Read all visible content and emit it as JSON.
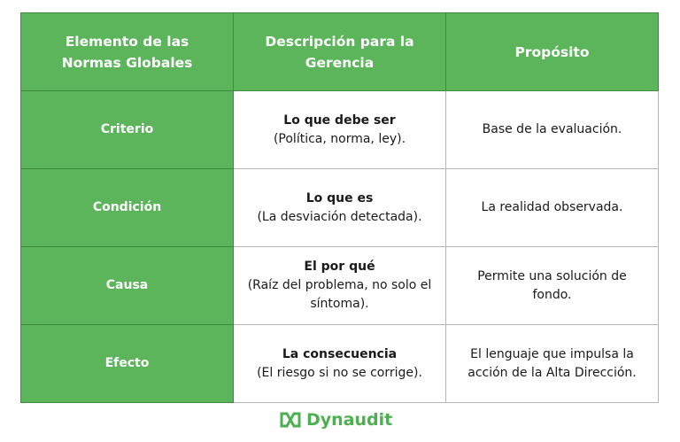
{
  "headers": [
    "Elemento de las Normas Globales",
    "Descripción para la Gerencia",
    "Propósito"
  ],
  "rows": [
    {
      "element": "Criterio",
      "desc_title": "Lo que debe ser",
      "desc_text": "(Política, norma, ley).",
      "purpose": "Base de la evaluación."
    },
    {
      "element": "Condición",
      "desc_title": "Lo que es",
      "desc_text": "(La desviación detectada).",
      "purpose": "La realidad observada."
    },
    {
      "element": "Causa",
      "desc_title": "El por qué",
      "desc_text": "(Raíz del problema, no solo el síntoma).",
      "purpose": "Permite una solución de fondo."
    },
    {
      "element": "Efecto",
      "desc_title": "La consecuencia",
      "desc_text": "(El riesgo si no se corrige).",
      "purpose": "El lenguaje que impulsa la acción de la Alta Dirección."
    }
  ],
  "logo": {
    "text": "Dynaudit",
    "color": "#4caf50"
  },
  "colors": {
    "header_bg": "#5cb55b",
    "border": "#3f8a43"
  }
}
